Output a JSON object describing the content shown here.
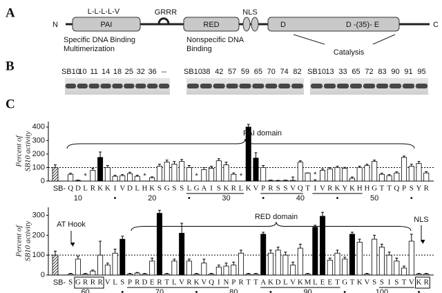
{
  "panel_a": {
    "label": "A",
    "n_term": "N",
    "c_term": "C",
    "motif": "L-L-L-L-V",
    "hook": "GRRR",
    "pai": "PAI",
    "red": "RED",
    "nls": "NLS",
    "d": "D",
    "dde": "D -(35)- E",
    "pai_function": [
      "Specific DNA Binding",
      "Multimerization"
    ],
    "red_function": [
      "Nonspecific DNA",
      "Binding"
    ],
    "catalysis": "Catalysis"
  },
  "panel_b": {
    "label": "B",
    "groups": [
      {
        "lanes": [
          "SB10",
          "10",
          "11",
          "14",
          "18",
          "25",
          "32",
          "36",
          "--"
        ]
      },
      {
        "lanes": [
          "SB10",
          "38",
          "42",
          "57",
          "59",
          "65",
          "70",
          "74",
          "82"
        ]
      },
      {
        "lanes": [
          "SB10",
          "13",
          "33",
          "65",
          "72",
          "83",
          "90",
          "91",
          "95"
        ]
      }
    ]
  },
  "panel_c": {
    "label": "C"
  },
  "chart_data": [
    {
      "type": "bar",
      "ylabel": [
        "Percent of",
        "SB10 activity"
      ],
      "reference": {
        "label": "SB-",
        "value": 100,
        "error": 20
      },
      "x": [
        9,
        10,
        11,
        12,
        13,
        14,
        15,
        16,
        17,
        18,
        19,
        20,
        21,
        22,
        23,
        24,
        25,
        26,
        27,
        28,
        29,
        30,
        31,
        32,
        33,
        34,
        35,
        36,
        37,
        38,
        39,
        40,
        41,
        42,
        43,
        44,
        45,
        46,
        47,
        48,
        49,
        50,
        51,
        52,
        53,
        54,
        55,
        56,
        57
      ],
      "residues": [
        "Q",
        "D",
        "L",
        "R",
        "K",
        "K",
        "I",
        "V",
        "D",
        "L",
        "H",
        "K",
        "S",
        "G",
        "S",
        "S",
        "L",
        "G",
        "A",
        "I",
        "S",
        "K",
        "R",
        "L",
        "K",
        "V",
        "P",
        "R",
        "S",
        "S",
        "V",
        "Q",
        "T",
        "I",
        "V",
        "R",
        "K",
        "Y",
        "K",
        "H",
        "H",
        "G",
        "T",
        "T",
        "Q",
        "P",
        "S",
        "Y",
        "R"
      ],
      "values": [
        50,
        5,
        0,
        80,
        175,
        100,
        35,
        40,
        55,
        35,
        0,
        25,
        110,
        140,
        125,
        145,
        100,
        0,
        85,
        95,
        150,
        120,
        50,
        0,
        400,
        170,
        100,
        5,
        3,
        5,
        5,
        140,
        60,
        0,
        80,
        90,
        100,
        95,
        20,
        100,
        115,
        145,
        50,
        40,
        60,
        175,
        110,
        130,
        60
      ],
      "errors": [
        8,
        2,
        0,
        15,
        40,
        15,
        8,
        8,
        10,
        8,
        0,
        6,
        15,
        15,
        20,
        15,
        15,
        0,
        15,
        15,
        15,
        20,
        10,
        0,
        20,
        40,
        15,
        2,
        2,
        2,
        25,
        10,
        0,
        10,
        10,
        10,
        10,
        6,
        10,
        10,
        10,
        10,
        8,
        8,
        8,
        10,
        15,
        15,
        10
      ],
      "colors": [
        "white",
        "white",
        "white",
        "white",
        "black",
        "white",
        "white",
        "white",
        "white",
        "white",
        "white",
        "white",
        "white",
        "white",
        "white",
        "white",
        "white",
        "white",
        "white",
        "white",
        "white",
        "white",
        "white",
        "white",
        "black",
        "black",
        "white",
        "white",
        "white",
        "white",
        "white",
        "white",
        "white",
        "white",
        "white",
        "white",
        "white",
        "white",
        "white",
        "white",
        "white",
        "white",
        "white",
        "white",
        "white",
        "white",
        "white",
        "white",
        "white"
      ],
      "notes": [
        null,
        null,
        "*",
        null,
        null,
        null,
        null,
        null,
        null,
        null,
        "*",
        null,
        null,
        null,
        null,
        null,
        null,
        "*",
        null,
        null,
        null,
        null,
        null,
        "*",
        null,
        null,
        null,
        null,
        null,
        null,
        null,
        null,
        null,
        "*",
        null,
        null,
        null,
        null,
        null,
        null,
        null,
        null,
        null,
        null,
        null,
        null,
        null,
        null,
        null
      ],
      "xlim": [
        6,
        58
      ],
      "xticks": [
        10,
        {
          "value": 15,
          "label": "•"
        },
        20,
        {
          "value": 25,
          "label": "•"
        },
        30,
        {
          "value": 35,
          "label": "•"
        },
        40,
        {
          "value": 45,
          "label": "•"
        },
        50,
        {
          "value": 55,
          "label": "•"
        }
      ],
      "ylim": [
        0,
        440
      ],
      "yticks": [
        0,
        100,
        200,
        300,
        400
      ],
      "reference_line": 100,
      "annotations": [
        "PAI domain"
      ]
    },
    {
      "type": "bar",
      "ylabel": [
        "Percent of",
        "SB10 activity"
      ],
      "reference": {
        "label": "SB-",
        "value": 100,
        "error": 20
      },
      "x": [
        58,
        59,
        60,
        61,
        62,
        63,
        64,
        65,
        66,
        67,
        68,
        69,
        70,
        71,
        72,
        73,
        74,
        75,
        76,
        77,
        78,
        79,
        80,
        81,
        82,
        83,
        84,
        85,
        86,
        87,
        88,
        89,
        90,
        91,
        92,
        93,
        94,
        95,
        96,
        97,
        98,
        99,
        100,
        101,
        102,
        103,
        104,
        105,
        106
      ],
      "residues": [
        "S",
        "G",
        "R",
        "R",
        "R",
        "V",
        "L",
        "S",
        "P",
        "R",
        "D",
        "E",
        "R",
        "T",
        "L",
        "V",
        "R",
        "K",
        "V",
        "Q",
        "I",
        "N",
        "P",
        "R",
        "T",
        "T",
        "A",
        "K",
        "D",
        "L",
        "V",
        "K",
        "M",
        "L",
        "E",
        "E",
        "T",
        "G",
        "T",
        "K",
        "V",
        "S",
        "S",
        "I",
        "S",
        "T",
        "V",
        "K",
        "R"
      ],
      "values": [
        5,
        80,
        5,
        20,
        100,
        50,
        110,
        180,
        5,
        10,
        5,
        70,
        310,
        5,
        70,
        210,
        70,
        5,
        60,
        5,
        40,
        45,
        50,
        110,
        5,
        5,
        205,
        110,
        125,
        100,
        50,
        135,
        5,
        240,
        295,
        75,
        110,
        80,
        205,
        165,
        5,
        180,
        140,
        100,
        70,
        35,
        170,
        5,
        5
      ],
      "errors": [
        3,
        15,
        3,
        5,
        70,
        10,
        20,
        15,
        3,
        3,
        3,
        15,
        15,
        3,
        10,
        50,
        10,
        3,
        20,
        3,
        10,
        15,
        15,
        15,
        3,
        3,
        10,
        15,
        15,
        15,
        15,
        20,
        3,
        10,
        20,
        10,
        15,
        10,
        10,
        15,
        3,
        20,
        15,
        15,
        15,
        10,
        35,
        3,
        3
      ],
      "colors": [
        "white",
        "white",
        "white",
        "white",
        "white",
        "white",
        "white",
        "black",
        "white",
        "white",
        "white",
        "white",
        "black",
        "white",
        "white",
        "black",
        "white",
        "white",
        "white",
        "white",
        "white",
        "white",
        "white",
        "white",
        "white",
        "white",
        "black",
        "white",
        "white",
        "white",
        "white",
        "white",
        "white",
        "black",
        "black",
        "white",
        "white",
        "white",
        "black",
        "white",
        "white",
        "white",
        "white",
        "white",
        "white",
        "white",
        "white",
        "white",
        "white"
      ],
      "xlim": [
        55,
        107
      ],
      "xticks": [
        60,
        {
          "value": 65,
          "label": "•"
        },
        70,
        {
          "value": 75,
          "label": "•"
        },
        80,
        {
          "value": 85,
          "label": "•"
        },
        90,
        {
          "value": 95,
          "label": "•"
        },
        100,
        {
          "value": 105,
          "label": "•"
        }
      ],
      "ylim": [
        0,
        340
      ],
      "yticks": [
        0,
        100,
        200,
        300
      ],
      "reference_line": 100,
      "annotations": [
        "AT Hook",
        "RED domain",
        "NLS"
      ]
    }
  ]
}
